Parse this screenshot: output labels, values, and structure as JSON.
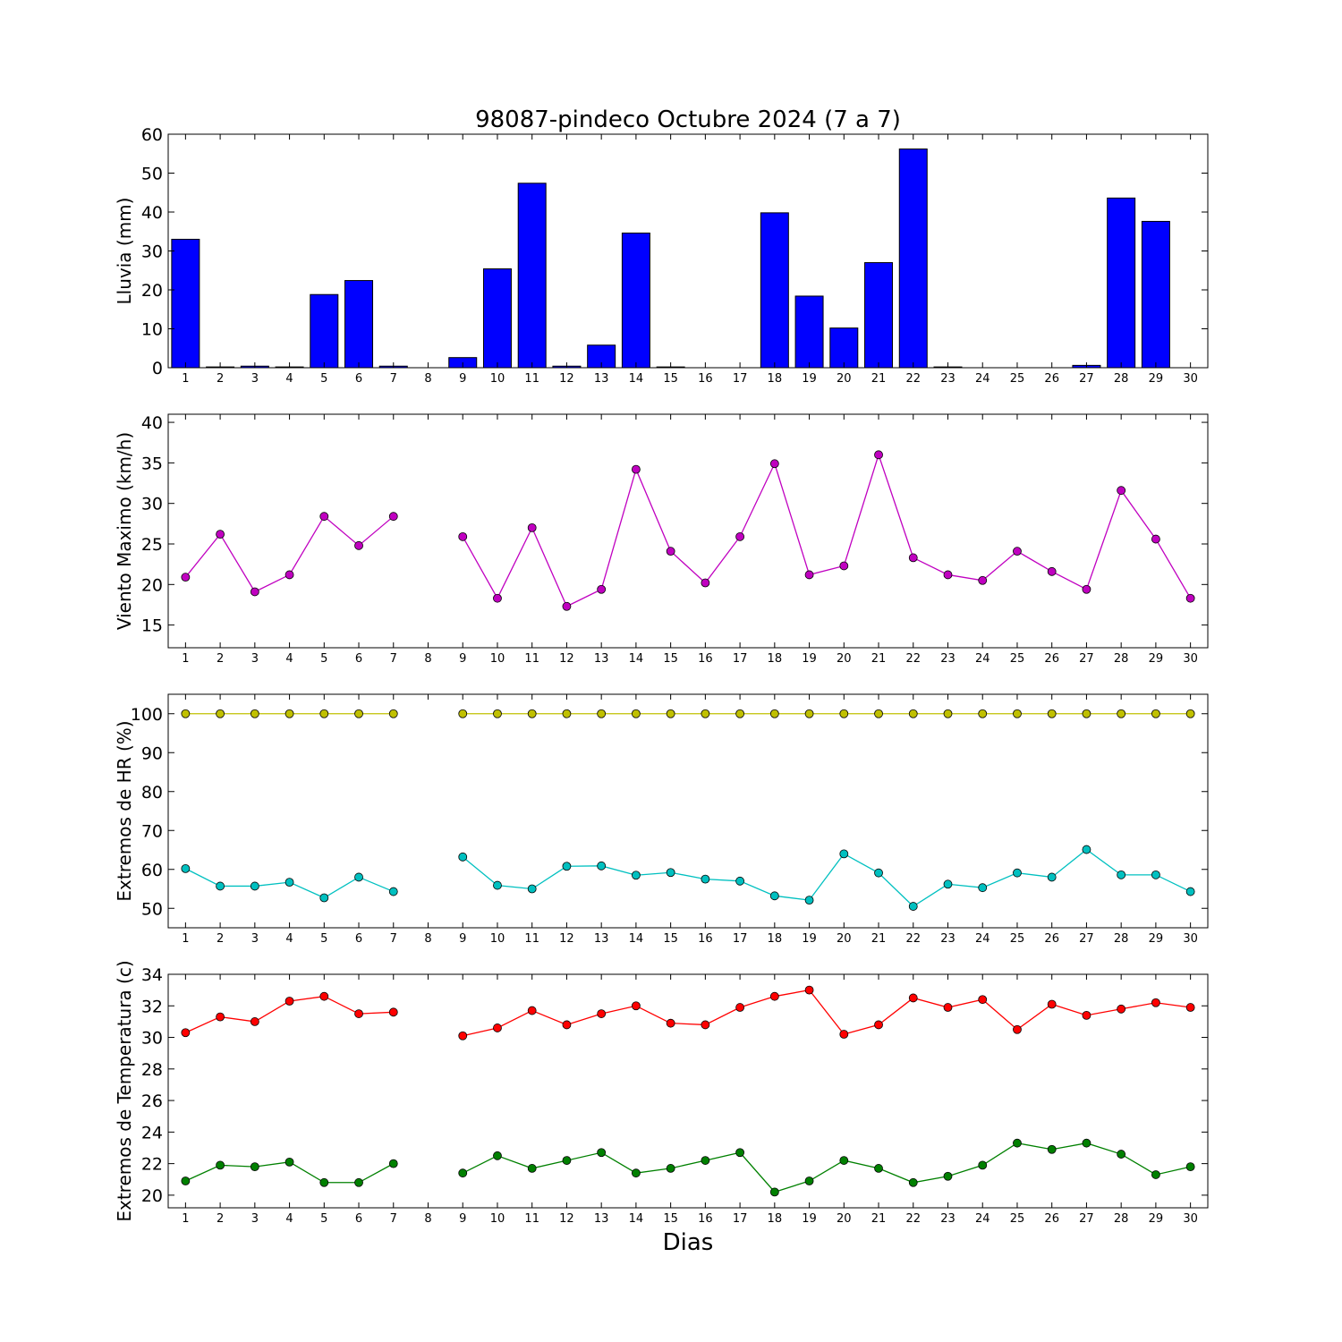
{
  "chart_data": [
    {
      "type": "bar",
      "title": "98087-pindeco Octubre 2024  (7 a 7)",
      "ylabel": "Lluvia (mm)",
      "ylim": [
        0,
        60
      ],
      "yticks": [
        0,
        10,
        20,
        30,
        40,
        50,
        60
      ],
      "categories": [
        "1",
        "2",
        "3",
        "4",
        "5",
        "6",
        "7",
        "8",
        "9",
        "10",
        "11",
        "12",
        "13",
        "14",
        "15",
        "16",
        "17",
        "18",
        "19",
        "20",
        "21",
        "22",
        "23",
        "24",
        "25",
        "26",
        "27",
        "28",
        "29",
        "30"
      ],
      "values": [
        33.0,
        0.2,
        0.4,
        0.2,
        18.8,
        22.4,
        0.4,
        null,
        2.6,
        25.4,
        47.4,
        0.4,
        5.8,
        34.6,
        0.2,
        0.0,
        0.0,
        39.8,
        18.4,
        10.2,
        27.0,
        56.2,
        0.2,
        0.0,
        0.0,
        0.0,
        0.6,
        43.6,
        37.6,
        null
      ],
      "colors": {
        "bar": "#0000ff"
      }
    },
    {
      "type": "line",
      "ylabel": "Viento Maximo (km/h)",
      "ylim": [
        12.2,
        41
      ],
      "yticks": [
        15,
        20,
        25,
        30,
        35,
        40
      ],
      "x": [
        1,
        2,
        3,
        4,
        5,
        6,
        7,
        8,
        9,
        10,
        11,
        12,
        13,
        14,
        15,
        16,
        17,
        18,
        19,
        20,
        21,
        22,
        23,
        24,
        25,
        26,
        27,
        28,
        29,
        30
      ],
      "series": [
        {
          "values": [
            20.9,
            26.2,
            19.1,
            21.2,
            28.4,
            24.8,
            28.4,
            null,
            25.9,
            18.3,
            27.0,
            17.3,
            19.4,
            34.2,
            24.1,
            20.2,
            25.9,
            34.9,
            21.2,
            22.3,
            36.0,
            23.3,
            21.2,
            20.5,
            24.1,
            21.6,
            19.4,
            31.6,
            25.6,
            18.3
          ],
          "color": "#c000c0"
        }
      ]
    },
    {
      "type": "line",
      "ylabel": "Extremos de HR (%)",
      "ylim": [
        45,
        105
      ],
      "yticks": [
        50,
        60,
        70,
        80,
        90,
        100
      ],
      "x": [
        1,
        2,
        3,
        4,
        5,
        6,
        7,
        8,
        9,
        10,
        11,
        12,
        13,
        14,
        15,
        16,
        17,
        18,
        19,
        20,
        21,
        22,
        23,
        24,
        25,
        26,
        27,
        28,
        29,
        30
      ],
      "series": [
        {
          "values": [
            100,
            100,
            100,
            100,
            100,
            100,
            100,
            null,
            100,
            100,
            100,
            100,
            100,
            100,
            100,
            100,
            100,
            100,
            100,
            100,
            100,
            100,
            100,
            100,
            100,
            100,
            100,
            100,
            100,
            100
          ],
          "color": "#c0c000"
        },
        {
          "values": [
            60.2,
            55.7,
            55.7,
            56.7,
            52.7,
            58.0,
            54.3,
            null,
            63.2,
            55.9,
            55.0,
            60.8,
            60.9,
            58.5,
            59.2,
            57.5,
            57.0,
            53.2,
            52.1,
            64.0,
            59.1,
            50.5,
            56.2,
            55.3,
            59.1,
            58.0,
            65.1,
            58.6,
            58.6,
            54.3
          ],
          "color": "#00c0c0"
        }
      ]
    },
    {
      "type": "line",
      "ylabel": "Extremos de Temperatura (c)",
      "xlabel": "Dias",
      "ylim": [
        19.2,
        34
      ],
      "yticks": [
        20,
        22,
        24,
        26,
        28,
        30,
        32,
        34
      ],
      "x": [
        1,
        2,
        3,
        4,
        5,
        6,
        7,
        8,
        9,
        10,
        11,
        12,
        13,
        14,
        15,
        16,
        17,
        18,
        19,
        20,
        21,
        22,
        23,
        24,
        25,
        26,
        27,
        28,
        29,
        30
      ],
      "series": [
        {
          "values": [
            30.3,
            31.3,
            31.0,
            32.3,
            32.6,
            31.5,
            31.6,
            null,
            30.1,
            30.6,
            31.7,
            30.8,
            31.5,
            32.0,
            30.9,
            30.8,
            31.9,
            32.6,
            33.0,
            30.2,
            30.8,
            32.5,
            31.9,
            32.4,
            30.5,
            32.1,
            31.4,
            31.8,
            32.2,
            31.9
          ],
          "color": "#ff0000"
        },
        {
          "values": [
            20.9,
            21.9,
            21.8,
            22.1,
            20.8,
            20.8,
            22.0,
            null,
            21.4,
            22.5,
            21.7,
            22.2,
            22.7,
            21.4,
            21.7,
            22.2,
            22.7,
            20.2,
            20.9,
            22.2,
            21.7,
            20.8,
            21.2,
            21.9,
            23.3,
            22.9,
            23.3,
            22.6,
            21.3,
            21.8
          ],
          "color": "#008000"
        }
      ]
    }
  ]
}
